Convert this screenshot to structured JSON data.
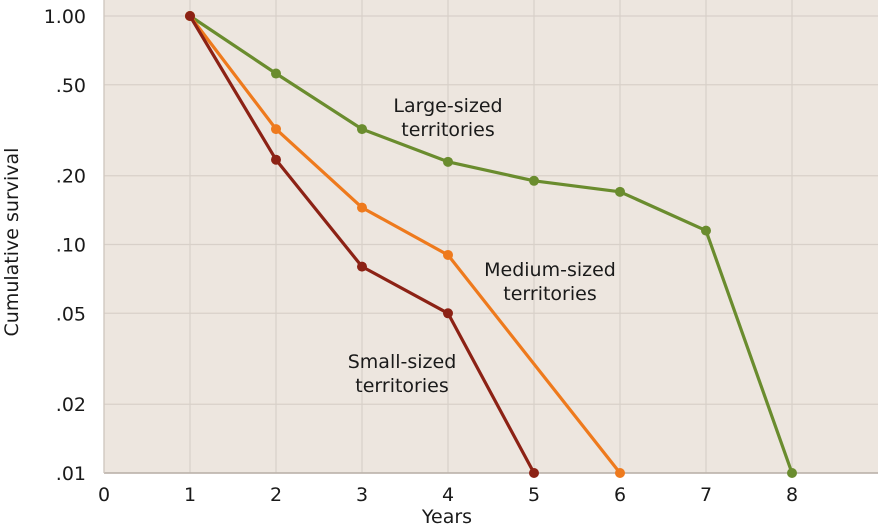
{
  "chart_data": {
    "type": "line",
    "title": "",
    "xlabel": "Years",
    "ylabel": "Cumulative survival",
    "xlim": [
      0,
      9
    ],
    "ylim": [
      0.01,
      1.0
    ],
    "yscale": "log",
    "grid": true,
    "background_color": "#ede6df",
    "grid_color": "#d8d0c9",
    "x_ticks": [
      0,
      1,
      2,
      3,
      4,
      5,
      6,
      7,
      8
    ],
    "x_tick_labels": [
      "0",
      "1",
      "2",
      "3",
      "4",
      "5",
      "6",
      "7",
      "8"
    ],
    "y_ticks": [
      1.0,
      0.5,
      0.2,
      0.1,
      0.05,
      0.02,
      0.01
    ],
    "y_tick_labels": [
      "1.00",
      ".50",
      ".20",
      ".10",
      ".05",
      ".02",
      ".01"
    ],
    "series": [
      {
        "key": "large",
        "color": "#6a8c2e",
        "x": [
          1,
          2,
          3,
          4,
          5,
          6,
          7,
          8
        ],
        "y": [
          1.0,
          0.56,
          0.32,
          0.23,
          0.19,
          0.17,
          0.115,
          0.01
        ]
      },
      {
        "key": "medium",
        "color": "#ee7a1d",
        "x": [
          1,
          2,
          3,
          4,
          6
        ],
        "y": [
          1.0,
          0.32,
          0.145,
          0.09,
          0.01
        ]
      },
      {
        "key": "small",
        "color": "#8c2215",
        "x": [
          1,
          2,
          3,
          4,
          5
        ],
        "y": [
          1.0,
          0.235,
          0.08,
          0.05,
          0.01
        ]
      }
    ],
    "annotations": [
      {
        "key": "large",
        "lines": [
          "Large-sized",
          "territories"
        ]
      },
      {
        "key": "medium",
        "lines": [
          "Medium-sized",
          "territories"
        ]
      },
      {
        "key": "small",
        "lines": [
          "Small-sized",
          "territories"
        ]
      }
    ]
  }
}
